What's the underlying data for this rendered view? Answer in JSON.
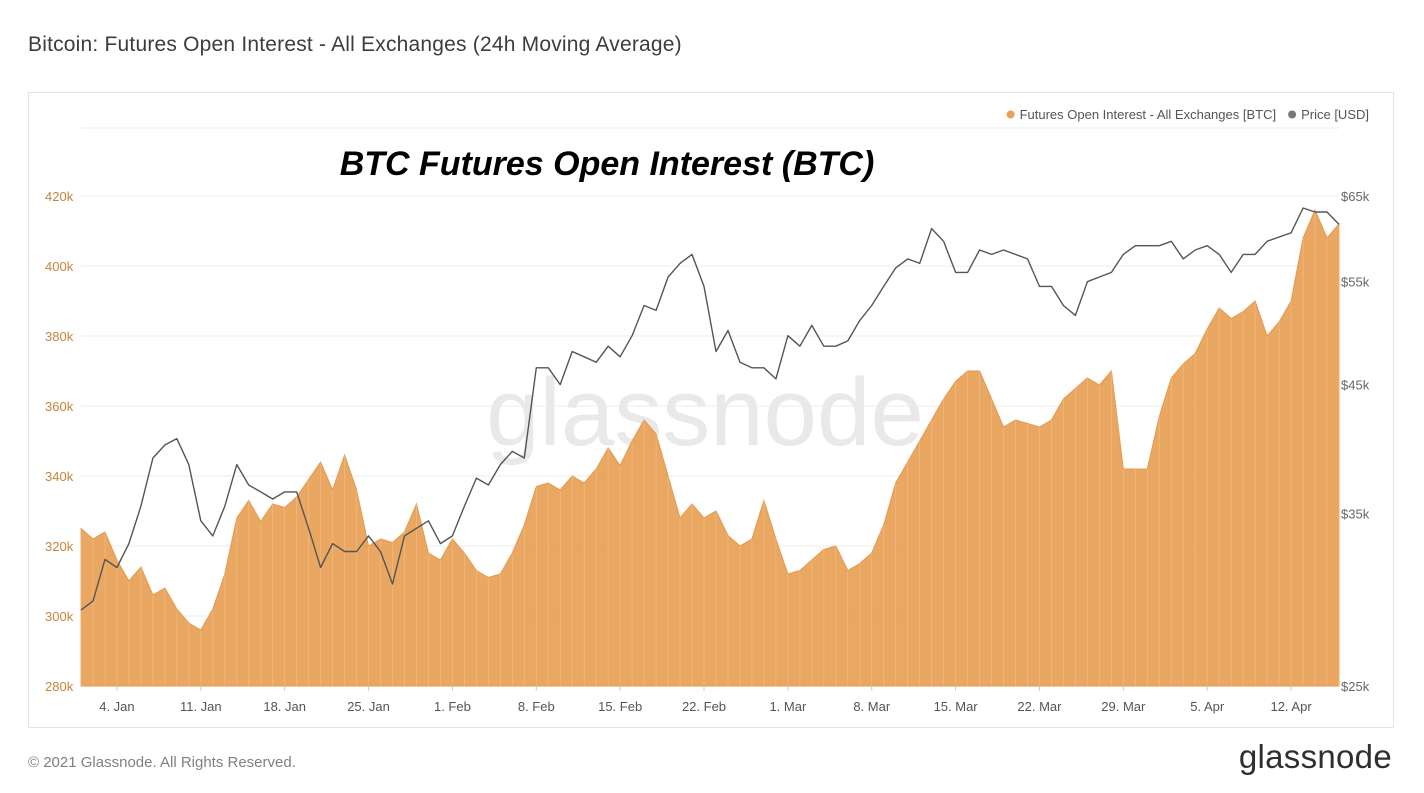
{
  "page": {
    "title": "Bitcoin: Futures Open Interest - All Exchanges (24h Moving Average)",
    "copyright": "© 2021 Glassnode. All Rights Reserved.",
    "logo": "glassnode",
    "watermark": "glassnode"
  },
  "chart_data": {
    "type": "area",
    "title": "BTC Futures Open Interest (BTC)",
    "colors": {
      "open_interest": "#E8A25A",
      "price": "#555555",
      "left_axis_text": "#C8843C",
      "right_axis_text": "#666666",
      "grid": "#ececec"
    },
    "legend": {
      "placement": "top-right",
      "items": [
        {
          "label": "Futures Open Interest - All Exchanges [BTC]",
          "color": "#E8A25A"
        },
        {
          "label": "Price [USD]",
          "color": "#777777"
        }
      ]
    },
    "x_axis": {
      "ticks": [
        "4. Jan",
        "11. Jan",
        "18. Jan",
        "25. Jan",
        "1. Feb",
        "8. Feb",
        "15. Feb",
        "22. Feb",
        "1. Mar",
        "8. Mar",
        "15. Mar",
        "22. Mar",
        "29. Mar",
        "5. Apr",
        "12. Apr"
      ],
      "range": [
        "2021-01-01",
        "2021-04-16"
      ]
    },
    "y_axis_left": {
      "label": "",
      "range": [
        280000,
        420000
      ],
      "ticks": [
        {
          "v": 280000,
          "label": "280k"
        },
        {
          "v": 300000,
          "label": "300k"
        },
        {
          "v": 320000,
          "label": "320k"
        },
        {
          "v": 340000,
          "label": "340k"
        },
        {
          "v": 360000,
          "label": "360k"
        },
        {
          "v": 380000,
          "label": "380k"
        },
        {
          "v": 400000,
          "label": "400k"
        },
        {
          "v": 420000,
          "label": "420k"
        }
      ]
    },
    "y_axis_right": {
      "label": "",
      "scale": "log",
      "range": [
        25000,
        65000
      ],
      "ticks": [
        {
          "v": 25000,
          "label": "$25k"
        },
        {
          "v": 35000,
          "label": "$35k"
        },
        {
          "v": 45000,
          "label": "$45k"
        },
        {
          "v": 55000,
          "label": "$55k"
        },
        {
          "v": 65000,
          "label": "$65k"
        }
      ]
    },
    "grid": true,
    "series": [
      {
        "name": "Futures Open Interest - All Exchanges [BTC]",
        "axis": "left",
        "points": [
          [
            "2021-01-01",
            325000
          ],
          [
            "2021-01-02",
            322000
          ],
          [
            "2021-01-03",
            324000
          ],
          [
            "2021-01-04",
            316000
          ],
          [
            "2021-01-05",
            310000
          ],
          [
            "2021-01-06",
            314000
          ],
          [
            "2021-01-07",
            306000
          ],
          [
            "2021-01-08",
            308000
          ],
          [
            "2021-01-09",
            302000
          ],
          [
            "2021-01-10",
            298000
          ],
          [
            "2021-01-11",
            296000
          ],
          [
            "2021-01-12",
            302000
          ],
          [
            "2021-01-13",
            312000
          ],
          [
            "2021-01-14",
            328000
          ],
          [
            "2021-01-15",
            333000
          ],
          [
            "2021-01-16",
            327000
          ],
          [
            "2021-01-17",
            332000
          ],
          [
            "2021-01-18",
            331000
          ],
          [
            "2021-01-19",
            334000
          ],
          [
            "2021-01-20",
            339000
          ],
          [
            "2021-01-21",
            344000
          ],
          [
            "2021-01-22",
            336000
          ],
          [
            "2021-01-23",
            346000
          ],
          [
            "2021-01-24",
            336000
          ],
          [
            "2021-01-25",
            320000
          ],
          [
            "2021-01-26",
            322000
          ],
          [
            "2021-01-27",
            321000
          ],
          [
            "2021-01-28",
            324000
          ],
          [
            "2021-01-29",
            332000
          ],
          [
            "2021-01-30",
            318000
          ],
          [
            "2021-01-31",
            316000
          ],
          [
            "2021-02-01",
            322000
          ],
          [
            "2021-02-02",
            318000
          ],
          [
            "2021-02-03",
            313000
          ],
          [
            "2021-02-04",
            311000
          ],
          [
            "2021-02-05",
            312000
          ],
          [
            "2021-02-06",
            318000
          ],
          [
            "2021-02-07",
            326000
          ],
          [
            "2021-02-08",
            337000
          ],
          [
            "2021-02-09",
            338000
          ],
          [
            "2021-02-10",
            336000
          ],
          [
            "2021-02-11",
            340000
          ],
          [
            "2021-02-12",
            338000
          ],
          [
            "2021-02-13",
            342000
          ],
          [
            "2021-02-14",
            348000
          ],
          [
            "2021-02-15",
            343000
          ],
          [
            "2021-02-16",
            350000
          ],
          [
            "2021-02-17",
            356000
          ],
          [
            "2021-02-18",
            352000
          ],
          [
            "2021-02-19",
            340000
          ],
          [
            "2021-02-20",
            328000
          ],
          [
            "2021-02-21",
            332000
          ],
          [
            "2021-02-22",
            328000
          ],
          [
            "2021-02-23",
            330000
          ],
          [
            "2021-02-24",
            323000
          ],
          [
            "2021-02-25",
            320000
          ],
          [
            "2021-02-26",
            322000
          ],
          [
            "2021-02-27",
            333000
          ],
          [
            "2021-02-28",
            322000
          ],
          [
            "2021-03-01",
            312000
          ],
          [
            "2021-03-02",
            313000
          ],
          [
            "2021-03-03",
            316000
          ],
          [
            "2021-03-04",
            319000
          ],
          [
            "2021-03-05",
            320000
          ],
          [
            "2021-03-06",
            313000
          ],
          [
            "2021-03-07",
            315000
          ],
          [
            "2021-03-08",
            318000
          ],
          [
            "2021-03-09",
            326000
          ],
          [
            "2021-03-10",
            338000
          ],
          [
            "2021-03-11",
            344000
          ],
          [
            "2021-03-12",
            350000
          ],
          [
            "2021-03-13",
            356000
          ],
          [
            "2021-03-14",
            362000
          ],
          [
            "2021-03-15",
            367000
          ],
          [
            "2021-03-16",
            370000
          ],
          [
            "2021-03-17",
            370000
          ],
          [
            "2021-03-18",
            362000
          ],
          [
            "2021-03-19",
            354000
          ],
          [
            "2021-03-20",
            356000
          ],
          [
            "2021-03-21",
            355000
          ],
          [
            "2021-03-22",
            354000
          ],
          [
            "2021-03-23",
            356000
          ],
          [
            "2021-03-24",
            362000
          ],
          [
            "2021-03-25",
            365000
          ],
          [
            "2021-03-26",
            368000
          ],
          [
            "2021-03-27",
            366000
          ],
          [
            "2021-03-28",
            370000
          ],
          [
            "2021-03-29",
            342000
          ],
          [
            "2021-03-30",
            342000
          ],
          [
            "2021-03-31",
            342000
          ],
          [
            "2021-04-01",
            357000
          ],
          [
            "2021-04-02",
            368000
          ],
          [
            "2021-04-03",
            372000
          ],
          [
            "2021-04-04",
            375000
          ],
          [
            "2021-04-05",
            382000
          ],
          [
            "2021-04-06",
            388000
          ],
          [
            "2021-04-07",
            385000
          ],
          [
            "2021-04-08",
            387000
          ],
          [
            "2021-04-09",
            390000
          ],
          [
            "2021-04-10",
            380000
          ],
          [
            "2021-04-11",
            384000
          ],
          [
            "2021-04-12",
            390000
          ],
          [
            "2021-04-13",
            408000
          ],
          [
            "2021-04-14",
            416000
          ],
          [
            "2021-04-15",
            408000
          ],
          [
            "2021-04-16",
            412000
          ]
        ]
      },
      {
        "name": "Price [USD]",
        "axis": "right",
        "points": [
          [
            "2021-01-01",
            29000
          ],
          [
            "2021-01-02",
            29500
          ],
          [
            "2021-01-03",
            32000
          ],
          [
            "2021-01-04",
            31500
          ],
          [
            "2021-01-05",
            33000
          ],
          [
            "2021-01-06",
            35500
          ],
          [
            "2021-01-07",
            39000
          ],
          [
            "2021-01-08",
            40000
          ],
          [
            "2021-01-09",
            40500
          ],
          [
            "2021-01-10",
            38500
          ],
          [
            "2021-01-11",
            34500
          ],
          [
            "2021-01-12",
            33500
          ],
          [
            "2021-01-13",
            35500
          ],
          [
            "2021-01-14",
            38500
          ],
          [
            "2021-01-15",
            37000
          ],
          [
            "2021-01-16",
            36500
          ],
          [
            "2021-01-17",
            36000
          ],
          [
            "2021-01-18",
            36500
          ],
          [
            "2021-01-19",
            36500
          ],
          [
            "2021-01-20",
            34000
          ],
          [
            "2021-01-21",
            31500
          ],
          [
            "2021-01-22",
            33000
          ],
          [
            "2021-01-23",
            32500
          ],
          [
            "2021-01-24",
            32500
          ],
          [
            "2021-01-25",
            33500
          ],
          [
            "2021-01-26",
            32500
          ],
          [
            "2021-01-27",
            30500
          ],
          [
            "2021-01-28",
            33500
          ],
          [
            "2021-01-29",
            34000
          ],
          [
            "2021-01-30",
            34500
          ],
          [
            "2021-01-31",
            33000
          ],
          [
            "2021-02-01",
            33500
          ],
          [
            "2021-02-02",
            35500
          ],
          [
            "2021-02-03",
            37500
          ],
          [
            "2021-02-04",
            37000
          ],
          [
            "2021-02-05",
            38500
          ],
          [
            "2021-02-06",
            39500
          ],
          [
            "2021-02-07",
            39000
          ],
          [
            "2021-02-08",
            46500
          ],
          [
            "2021-02-09",
            46500
          ],
          [
            "2021-02-10",
            45000
          ],
          [
            "2021-02-11",
            48000
          ],
          [
            "2021-02-12",
            47500
          ],
          [
            "2021-02-13",
            47000
          ],
          [
            "2021-02-14",
            48500
          ],
          [
            "2021-02-15",
            47500
          ],
          [
            "2021-02-16",
            49500
          ],
          [
            "2021-02-17",
            52500
          ],
          [
            "2021-02-18",
            52000
          ],
          [
            "2021-02-19",
            55500
          ],
          [
            "2021-02-20",
            57000
          ],
          [
            "2021-02-21",
            58000
          ],
          [
            "2021-02-22",
            54500
          ],
          [
            "2021-02-23",
            48000
          ],
          [
            "2021-02-24",
            50000
          ],
          [
            "2021-02-25",
            47000
          ],
          [
            "2021-02-26",
            46500
          ],
          [
            "2021-02-27",
            46500
          ],
          [
            "2021-02-28",
            45500
          ],
          [
            "2021-03-01",
            49500
          ],
          [
            "2021-03-02",
            48500
          ],
          [
            "2021-03-03",
            50500
          ],
          [
            "2021-03-04",
            48500
          ],
          [
            "2021-03-05",
            48500
          ],
          [
            "2021-03-06",
            49000
          ],
          [
            "2021-03-07",
            51000
          ],
          [
            "2021-03-08",
            52500
          ],
          [
            "2021-03-09",
            54500
          ],
          [
            "2021-03-10",
            56500
          ],
          [
            "2021-03-11",
            57500
          ],
          [
            "2021-03-12",
            57000
          ],
          [
            "2021-03-13",
            61000
          ],
          [
            "2021-03-14",
            59500
          ],
          [
            "2021-03-15",
            56000
          ],
          [
            "2021-03-16",
            56000
          ],
          [
            "2021-03-17",
            58500
          ],
          [
            "2021-03-18",
            58000
          ],
          [
            "2021-03-19",
            58500
          ],
          [
            "2021-03-20",
            58000
          ],
          [
            "2021-03-21",
            57500
          ],
          [
            "2021-03-22",
            54500
          ],
          [
            "2021-03-23",
            54500
          ],
          [
            "2021-03-24",
            52500
          ],
          [
            "2021-03-25",
            51500
          ],
          [
            "2021-03-26",
            55000
          ],
          [
            "2021-03-27",
            55500
          ],
          [
            "2021-03-28",
            56000
          ],
          [
            "2021-03-29",
            58000
          ],
          [
            "2021-03-30",
            59000
          ],
          [
            "2021-03-31",
            59000
          ],
          [
            "2021-04-01",
            59000
          ],
          [
            "2021-04-02",
            59500
          ],
          [
            "2021-04-03",
            57500
          ],
          [
            "2021-04-04",
            58500
          ],
          [
            "2021-04-05",
            59000
          ],
          [
            "2021-04-06",
            58000
          ],
          [
            "2021-04-07",
            56000
          ],
          [
            "2021-04-08",
            58000
          ],
          [
            "2021-04-09",
            58000
          ],
          [
            "2021-04-10",
            59500
          ],
          [
            "2021-04-11",
            60000
          ],
          [
            "2021-04-12",
            60500
          ],
          [
            "2021-04-13",
            63500
          ],
          [
            "2021-04-14",
            63000
          ],
          [
            "2021-04-15",
            63000
          ],
          [
            "2021-04-16",
            61500
          ]
        ]
      }
    ]
  }
}
